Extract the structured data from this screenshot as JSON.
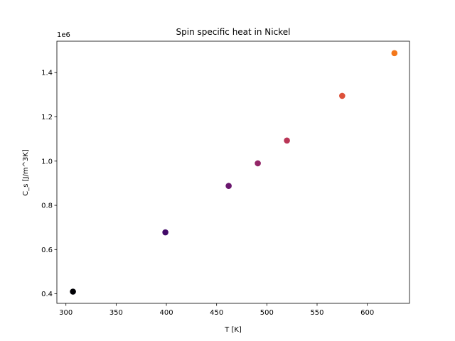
{
  "chart_data": {
    "type": "scatter",
    "title": "Spin specific heat in Nickel",
    "xlabel": "T [K]",
    "ylabel": "C_s [J/m^3K]",
    "y_offset_label": "1e6",
    "xlim": [
      291,
      642
    ],
    "ylim": [
      0.357,
      1.542
    ],
    "x_ticks": [
      300,
      350,
      400,
      450,
      500,
      550,
      600
    ],
    "y_ticks": [
      0.4,
      0.6,
      0.8,
      1.0,
      1.2,
      1.4
    ],
    "x_tick_labels": [
      "300",
      "350",
      "400",
      "450",
      "500",
      "550",
      "600"
    ],
    "y_tick_labels": [
      "0.4",
      "0.6",
      "0.8",
      "1.0",
      "1.2",
      "1.4"
    ],
    "grid": false,
    "points": [
      {
        "x": 307,
        "y": 0.41,
        "color": "#000004"
      },
      {
        "x": 399,
        "y": 0.678,
        "color": "#420a68"
      },
      {
        "x": 462,
        "y": 0.888,
        "color": "#6a176e"
      },
      {
        "x": 491,
        "y": 0.99,
        "color": "#932667"
      },
      {
        "x": 520,
        "y": 1.093,
        "color": "#b93556"
      },
      {
        "x": 575,
        "y": 1.295,
        "color": "#dd513a"
      },
      {
        "x": 627,
        "y": 1.488,
        "color": "#f3771a"
      }
    ]
  }
}
